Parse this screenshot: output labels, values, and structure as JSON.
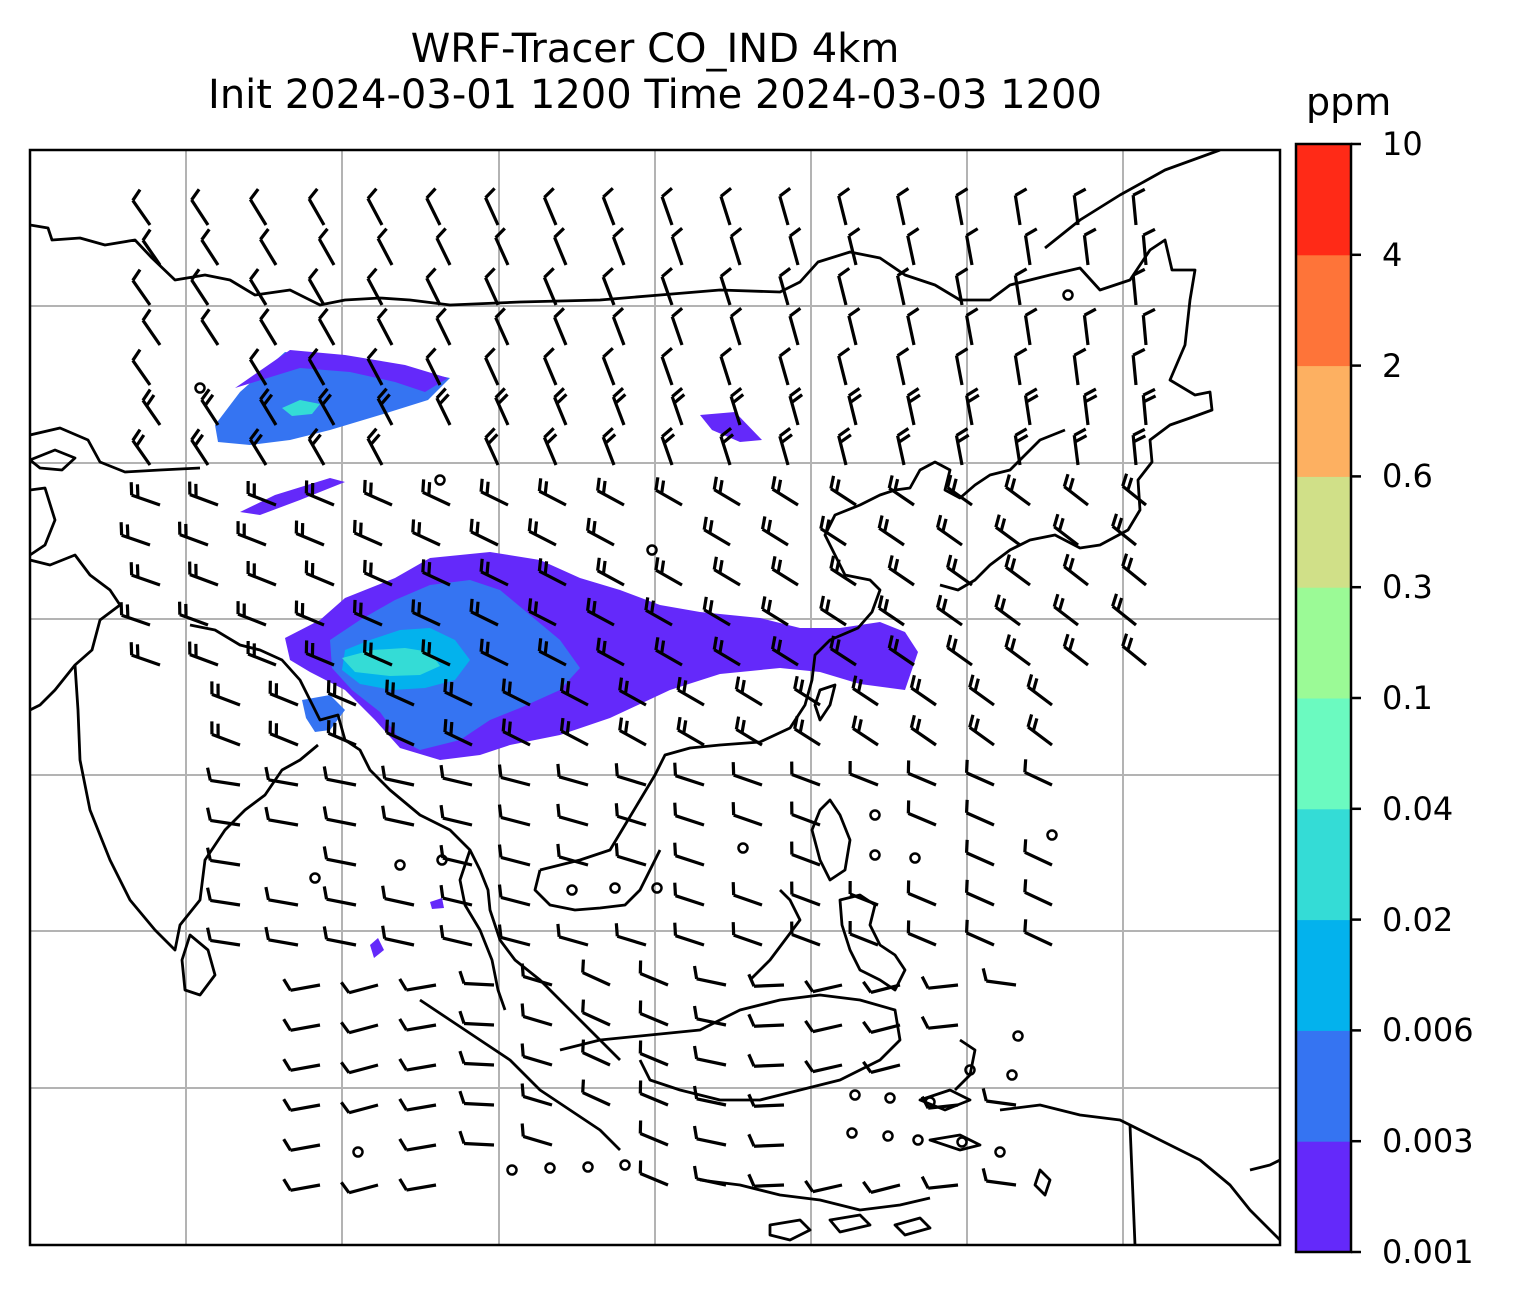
{
  "title": {
    "line1": "WRF-Tracer CO_IND 4km",
    "line2": "Init 2024-03-01 1200 Time 2024-03-03 1200"
  },
  "colorbar": {
    "unit": "ppm",
    "levels": [
      "0.001",
      "0.003",
      "0.006",
      "0.02",
      "0.04",
      "0.1",
      "0.3",
      "0.6",
      "2",
      "4",
      "10"
    ],
    "colors": [
      "#6429fa",
      "#3574f2",
      "#03b2ed",
      "#34dcd6",
      "#6bfac0",
      "#9bfa96",
      "#d0e088",
      "#fdb061",
      "#fe7439",
      "#ff2a17"
    ]
  },
  "map": {
    "gridlines": true,
    "coastline_color": "#000000",
    "barb_color": "#000000",
    "plumes": [
      {
        "name": "northern-plume",
        "level": 1
      },
      {
        "name": "main-plume",
        "level": 0
      },
      {
        "name": "main-plume-core",
        "level": 1
      },
      {
        "name": "main-plume-hotspot",
        "level": 3
      }
    ]
  }
}
